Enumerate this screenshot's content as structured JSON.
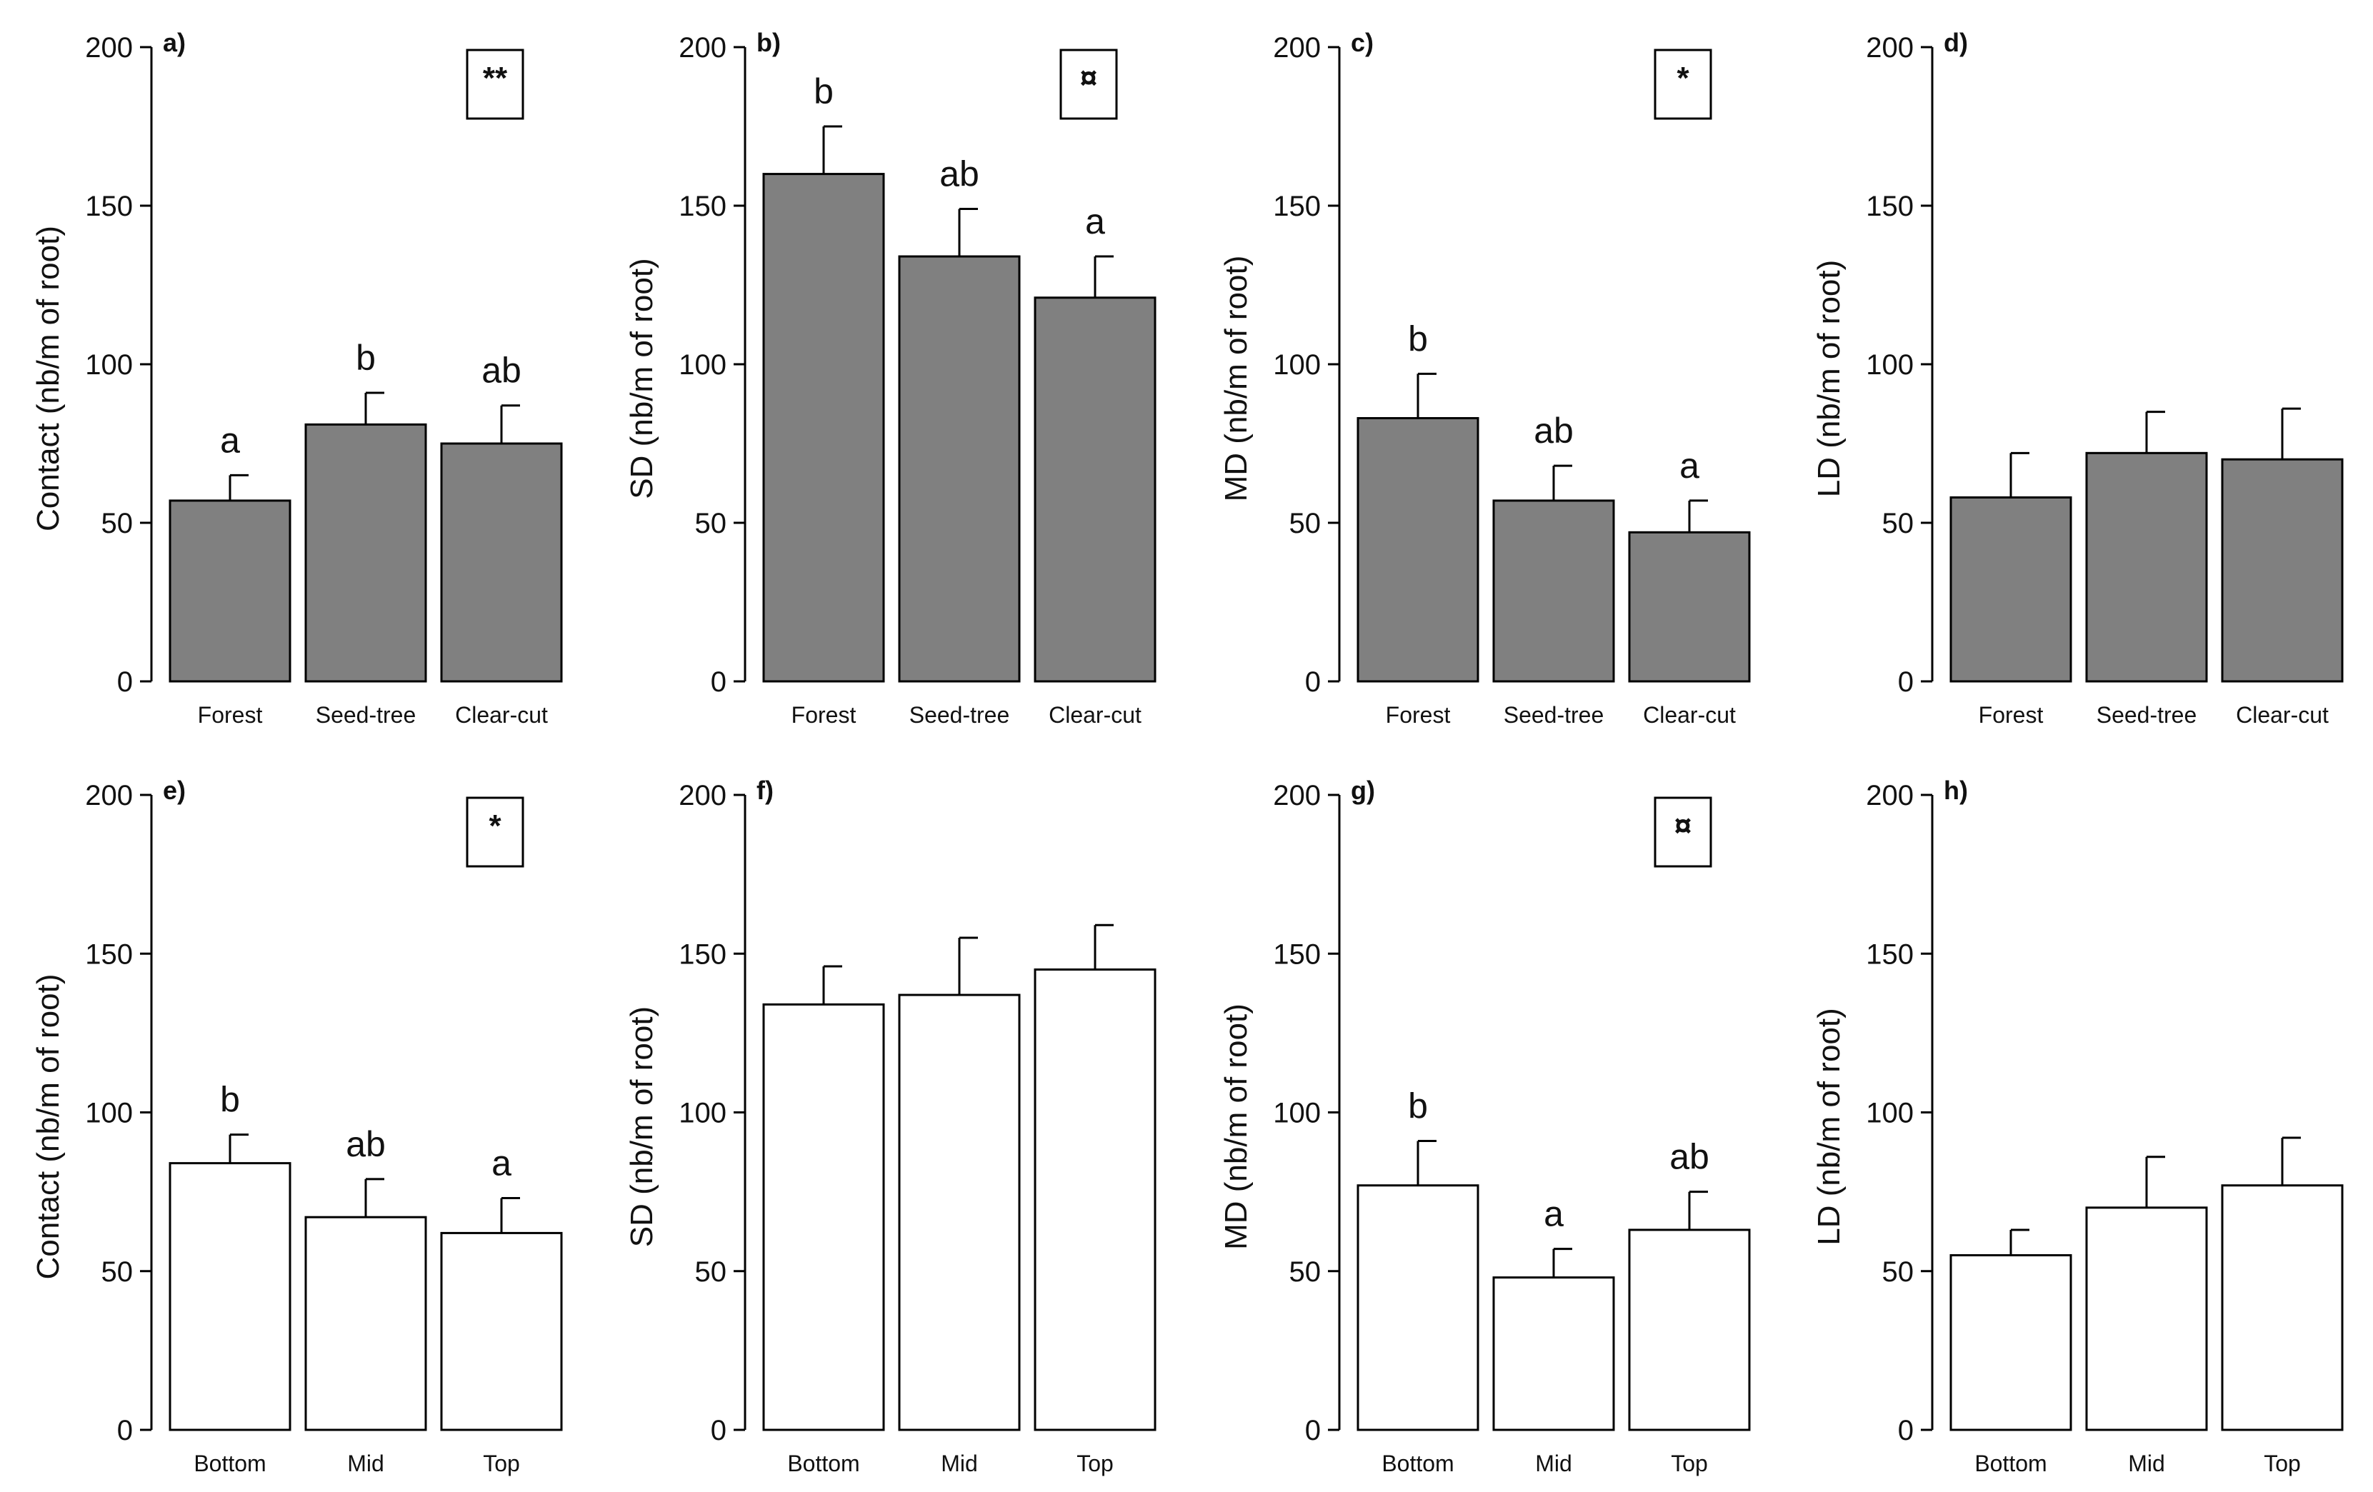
{
  "figure": {
    "ylim": [
      0,
      200
    ],
    "yticks": [
      0,
      50,
      100,
      150,
      200
    ],
    "colors": {
      "top_row_fill": "#808080",
      "bottom_row_fill": "#ffffff",
      "stroke": "#000000"
    }
  },
  "chart_data": [
    {
      "panel": "a)",
      "type": "bar",
      "ylabel": "Contact (nb/m of root)",
      "categories": [
        "Forest",
        "Seed-tree",
        "Clear-cut"
      ],
      "values": [
        57,
        81,
        75
      ],
      "errors": [
        8,
        10,
        12
      ],
      "letters": [
        "a",
        "b",
        "ab"
      ],
      "significance": "**",
      "fill": "grey"
    },
    {
      "panel": "b)",
      "type": "bar",
      "ylabel": "SD (nb/m of root)",
      "categories": [
        "Forest",
        "Seed-tree",
        "Clear-cut"
      ],
      "values": [
        160,
        134,
        121
      ],
      "errors": [
        15,
        15,
        13
      ],
      "letters": [
        "b",
        "ab",
        "a"
      ],
      "significance": "¤",
      "fill": "grey"
    },
    {
      "panel": "c)",
      "type": "bar",
      "ylabel": "MD (nb/m of root)",
      "categories": [
        "Forest",
        "Seed-tree",
        "Clear-cut"
      ],
      "values": [
        83,
        57,
        47
      ],
      "errors": [
        14,
        11,
        10
      ],
      "letters": [
        "b",
        "ab",
        "a"
      ],
      "significance": "*",
      "fill": "grey"
    },
    {
      "panel": "d)",
      "type": "bar",
      "ylabel": "LD (nb/m of root)",
      "categories": [
        "Forest",
        "Seed-tree",
        "Clear-cut"
      ],
      "values": [
        58,
        72,
        70
      ],
      "errors": [
        14,
        13,
        16
      ],
      "letters": [
        "",
        "",
        ""
      ],
      "significance": "",
      "fill": "grey"
    },
    {
      "panel": "e)",
      "type": "bar",
      "ylabel": "Contact (nb/m of root)",
      "categories": [
        "Bottom",
        "Mid",
        "Top"
      ],
      "values": [
        84,
        67,
        62
      ],
      "errors": [
        9,
        12,
        11
      ],
      "letters": [
        "b",
        "ab",
        "a"
      ],
      "significance": "*",
      "fill": "white"
    },
    {
      "panel": "f)",
      "type": "bar",
      "ylabel": "SD (nb/m of root)",
      "categories": [
        "Bottom",
        "Mid",
        "Top"
      ],
      "values": [
        134,
        137,
        145
      ],
      "errors": [
        12,
        18,
        14
      ],
      "letters": [
        "",
        "",
        ""
      ],
      "significance": "",
      "fill": "white"
    },
    {
      "panel": "g)",
      "type": "bar",
      "ylabel": "MD (nb/m of root)",
      "categories": [
        "Bottom",
        "Mid",
        "Top"
      ],
      "values": [
        77,
        48,
        63
      ],
      "errors": [
        14,
        9,
        12
      ],
      "letters": [
        "b",
        "a",
        "ab"
      ],
      "significance": "¤",
      "fill": "white"
    },
    {
      "panel": "h)",
      "type": "bar",
      "ylabel": "LD (nb/m of root)",
      "categories": [
        "Bottom",
        "Mid",
        "Top"
      ],
      "values": [
        55,
        70,
        77
      ],
      "errors": [
        8,
        16,
        15
      ],
      "letters": [
        "",
        "",
        ""
      ],
      "significance": "",
      "fill": "white"
    }
  ]
}
